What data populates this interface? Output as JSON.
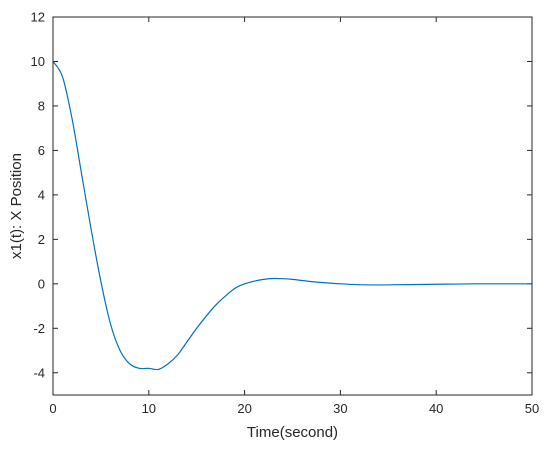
{
  "chart_data": {
    "type": "line",
    "title": "",
    "xlabel": "Time(second)",
    "ylabel": "x1(t): X Position",
    "xlim": [
      0,
      50
    ],
    "ylim": [
      -5,
      12
    ],
    "xticks": [
      0,
      10,
      20,
      30,
      40,
      50
    ],
    "yticks": [
      -4,
      -2,
      0,
      2,
      4,
      6,
      8,
      10,
      12
    ],
    "grid": false,
    "legend": "none",
    "series": [
      {
        "color": "#0072BD",
        "x": [
          0,
          1,
          2,
          3,
          4,
          5,
          6,
          7,
          8,
          9,
          10,
          11,
          12,
          13,
          14,
          15,
          16,
          17,
          18,
          19,
          20,
          21,
          22,
          23,
          24,
          25,
          26,
          27,
          28,
          30,
          32,
          34,
          36,
          38,
          40,
          42,
          44,
          46,
          48,
          50
        ],
        "y": [
          10.0,
          9.3,
          7.4,
          4.9,
          2.4,
          0.1,
          -1.8,
          -3.0,
          -3.6,
          -3.8,
          -3.8,
          -3.85,
          -3.6,
          -3.2,
          -2.6,
          -2.0,
          -1.45,
          -0.95,
          -0.55,
          -0.2,
          0.0,
          0.12,
          0.2,
          0.24,
          0.23,
          0.2,
          0.15,
          0.1,
          0.06,
          0.0,
          -0.04,
          -0.05,
          -0.04,
          -0.03,
          -0.02,
          -0.01,
          0.0,
          0.0,
          0.0,
          0.0
        ]
      }
    ]
  }
}
